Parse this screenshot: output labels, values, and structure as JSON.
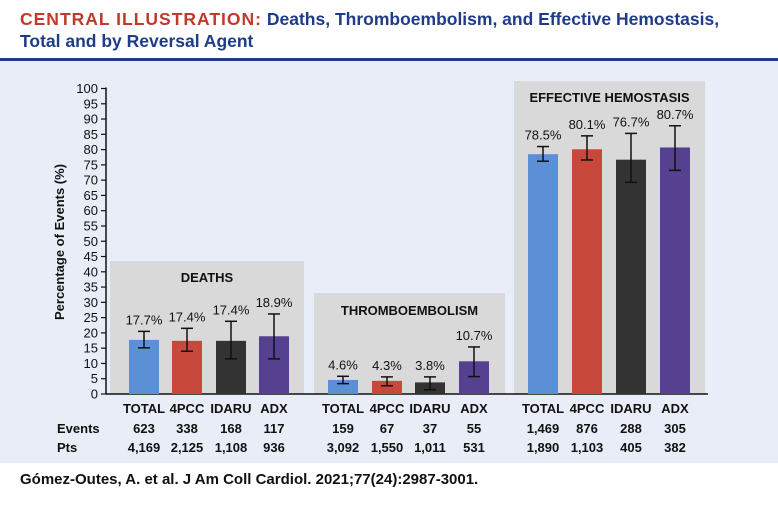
{
  "header": {
    "title_lead": "CENTRAL ILLUSTRATION:",
    "title_rest": "Deaths, Thromboembolism, and Effective Hemostasis, Total and by Reversal Agent"
  },
  "citation": "Gómez-Outes, A. et al. J Am Coll Cardiol. 2021;77(24):2987-3001.",
  "colors": {
    "TOTAL": "#5b8fd6",
    "4PCC": "#c8483c",
    "IDARU": "#333333",
    "ADX": "#55418f",
    "panel_bg": "#e8edf7",
    "group_bg": "#d9d9d9",
    "title_lead": "#c0392b",
    "title": "#1e3c87"
  },
  "chart_data": {
    "type": "bar",
    "ylabel": "Percentage of Events (%)",
    "ylim": [
      0,
      100
    ],
    "yticks": [
      0,
      5,
      10,
      15,
      20,
      25,
      30,
      35,
      40,
      45,
      50,
      55,
      60,
      65,
      70,
      75,
      80,
      85,
      90,
      95,
      100
    ],
    "row_labels": [
      "Events",
      "Pts"
    ],
    "groups": [
      {
        "name": "DEATHS",
        "bars": [
          {
            "category": "TOTAL",
            "value": 17.7,
            "label": "17.7%",
            "ci": [
              15.1,
              20.5
            ],
            "events": "623",
            "pts": "4,169"
          },
          {
            "category": "4PCC",
            "value": 17.4,
            "label": "17.4%",
            "ci": [
              14.0,
              21.5
            ],
            "events": "338",
            "pts": "2,125"
          },
          {
            "category": "IDARU",
            "value": 17.4,
            "label": "17.4%",
            "ci": [
              11.5,
              23.8
            ],
            "events": "168",
            "pts": "1,108"
          },
          {
            "category": "ADX",
            "value": 18.9,
            "label": "18.9%",
            "ci": [
              11.5,
              26.2
            ],
            "events": "117",
            "pts": "936"
          }
        ]
      },
      {
        "name": "THROMBOEMBOLISM",
        "bars": [
          {
            "category": "TOTAL",
            "value": 4.6,
            "label": "4.6%",
            "ci": [
              3.4,
              5.8
            ],
            "events": "159",
            "pts": "3,092"
          },
          {
            "category": "4PCC",
            "value": 4.3,
            "label": "4.3%",
            "ci": [
              2.7,
              5.6
            ],
            "events": "67",
            "pts": "1,550"
          },
          {
            "category": "IDARU",
            "value": 3.8,
            "label": "3.8%",
            "ci": [
              1.4,
              5.6
            ],
            "events": "37",
            "pts": "1,011"
          },
          {
            "category": "ADX",
            "value": 10.7,
            "label": "10.7%",
            "ci": [
              5.7,
              15.4
            ],
            "events": "55",
            "pts": "531"
          }
        ]
      },
      {
        "name": "EFFECTIVE HEMOSTASIS",
        "bars": [
          {
            "category": "TOTAL",
            "value": 78.5,
            "label": "78.5%",
            "ci": [
              76.2,
              81.0
            ],
            "events": "1,469",
            "pts": "1,890"
          },
          {
            "category": "4PCC",
            "value": 80.1,
            "label": "80.1%",
            "ci": [
              76.6,
              84.5
            ],
            "events": "876",
            "pts": "1,103"
          },
          {
            "category": "IDARU",
            "value": 76.7,
            "label": "76.7%",
            "ci": [
              69.3,
              85.3
            ],
            "events": "288",
            "pts": "405"
          },
          {
            "category": "ADX",
            "value": 80.7,
            "label": "80.7%",
            "ci": [
              73.2,
              87.8
            ],
            "events": "305",
            "pts": "382"
          }
        ]
      }
    ]
  }
}
